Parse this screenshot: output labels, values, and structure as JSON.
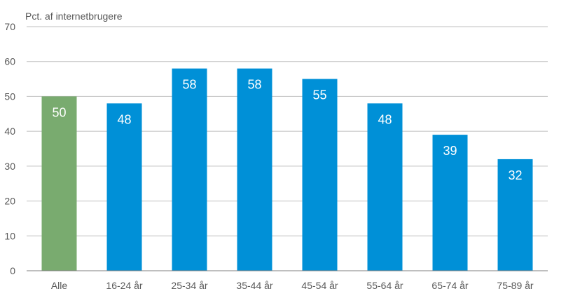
{
  "chart_data": {
    "type": "bar",
    "ylabel": "Pct. af internetbrugere",
    "xlabel": "",
    "categories": [
      "Alle",
      "16-24 år",
      "25-34 år",
      "35-44 år",
      "45-54 år",
      "55-64 år",
      "65-74 år",
      "75-89 år"
    ],
    "values": [
      50,
      48,
      58,
      58,
      55,
      48,
      39,
      32
    ],
    "data_labels": [
      "50",
      "48",
      "58",
      "58",
      "55",
      "48",
      "39",
      "32"
    ],
    "ylim": [
      0,
      70
    ],
    "yticks": [
      "0",
      "10",
      "20",
      "30",
      "40",
      "50",
      "60",
      "70"
    ],
    "grid": true,
    "legend": "none",
    "colors": {
      "highlight": "#79AB6F",
      "bar": "#0090D7",
      "grid": "#BFBFBF",
      "axis": "#7F7F7F",
      "text": "#595959",
      "label": "#FFFFFF"
    }
  }
}
